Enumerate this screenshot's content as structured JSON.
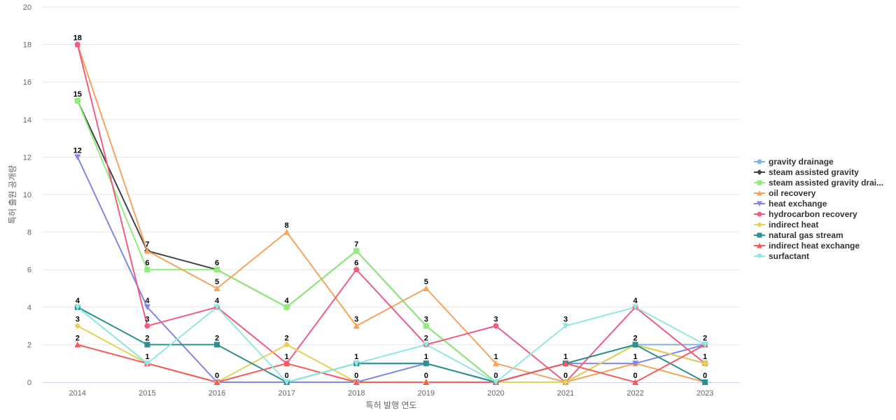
{
  "chart_data": {
    "type": "line",
    "xlabel": "특허 발행 연도",
    "ylabel": "특허 출원 공개량",
    "ylim": [
      0,
      20
    ],
    "ytick_step": 2,
    "grid": true,
    "legend_position": "right",
    "categories": [
      "2014",
      "2015",
      "2016",
      "2017",
      "2018",
      "2019",
      "2020",
      "2021",
      "2022",
      "2023"
    ],
    "series": [
      {
        "name": "gravity drainage",
        "color": "#7cb5ec",
        "marker": "circle",
        "values": [
          4,
          1,
          0,
          0,
          1,
          1,
          0,
          1,
          2,
          2
        ]
      },
      {
        "name": "steam assisted gravity",
        "color": "#434348",
        "marker": "diamond",
        "values": [
          15,
          7,
          6,
          4,
          7,
          3,
          0,
          0,
          2,
          1
        ]
      },
      {
        "name": "steam assisted gravity drai...",
        "color": "#90ed7d",
        "marker": "square",
        "values": [
          15,
          6,
          6,
          4,
          7,
          3,
          0,
          0,
          2,
          1
        ]
      },
      {
        "name": "oil recovery",
        "color": "#f7a35c",
        "marker": "triangle",
        "values": [
          18,
          7,
          5,
          8,
          3,
          5,
          1,
          0,
          1,
          0
        ]
      },
      {
        "name": "heat exchange",
        "color": "#8085e9",
        "marker": "triangle-down",
        "values": [
          12,
          4,
          0,
          0,
          0,
          1,
          0,
          1,
          1,
          2
        ]
      },
      {
        "name": "hydrocarbon recovery",
        "color": "#f15c80",
        "marker": "circle",
        "values": [
          18,
          3,
          4,
          1,
          6,
          2,
          3,
          0,
          4,
          1
        ]
      },
      {
        "name": "indirect heat",
        "color": "#e4d354",
        "marker": "diamond",
        "values": [
          3,
          1,
          0,
          2,
          0,
          0,
          0,
          0,
          2,
          1
        ]
      },
      {
        "name": "natural gas stream",
        "color": "#2b908f",
        "marker": "square",
        "values": [
          4,
          2,
          2,
          0,
          1,
          1,
          0,
          1,
          2,
          0
        ]
      },
      {
        "name": "indirect heat exchange",
        "color": "#f45b5b",
        "marker": "triangle",
        "values": [
          2,
          1,
          0,
          1,
          0,
          0,
          0,
          1,
          0,
          2
        ]
      },
      {
        "name": "surfactant",
        "color": "#91e8e1",
        "marker": "triangle-down",
        "values": [
          4,
          1,
          4,
          0,
          1,
          2,
          0,
          3,
          4,
          2
        ]
      }
    ],
    "data_labels": [
      {
        "x": "2014",
        "values": [
          18,
          15,
          12,
          4,
          3,
          2
        ]
      },
      {
        "x": "2015",
        "values": [
          7,
          6,
          4,
          3,
          2,
          1
        ]
      },
      {
        "x": "2016",
        "values": [
          6,
          5,
          4,
          2,
          0
        ]
      },
      {
        "x": "2017",
        "values": [
          8,
          4,
          2,
          1,
          0
        ]
      },
      {
        "x": "2018",
        "values": [
          7,
          6,
          3,
          1,
          0
        ]
      },
      {
        "x": "2019",
        "values": [
          5,
          3,
          2,
          1,
          0
        ]
      },
      {
        "x": "2020",
        "values": [
          3,
          1,
          0
        ]
      },
      {
        "x": "2021",
        "values": [
          3,
          1,
          0
        ]
      },
      {
        "x": "2022",
        "values": [
          4,
          2,
          1,
          0
        ]
      },
      {
        "x": "2023",
        "values": [
          2,
          1,
          0
        ]
      }
    ]
  }
}
